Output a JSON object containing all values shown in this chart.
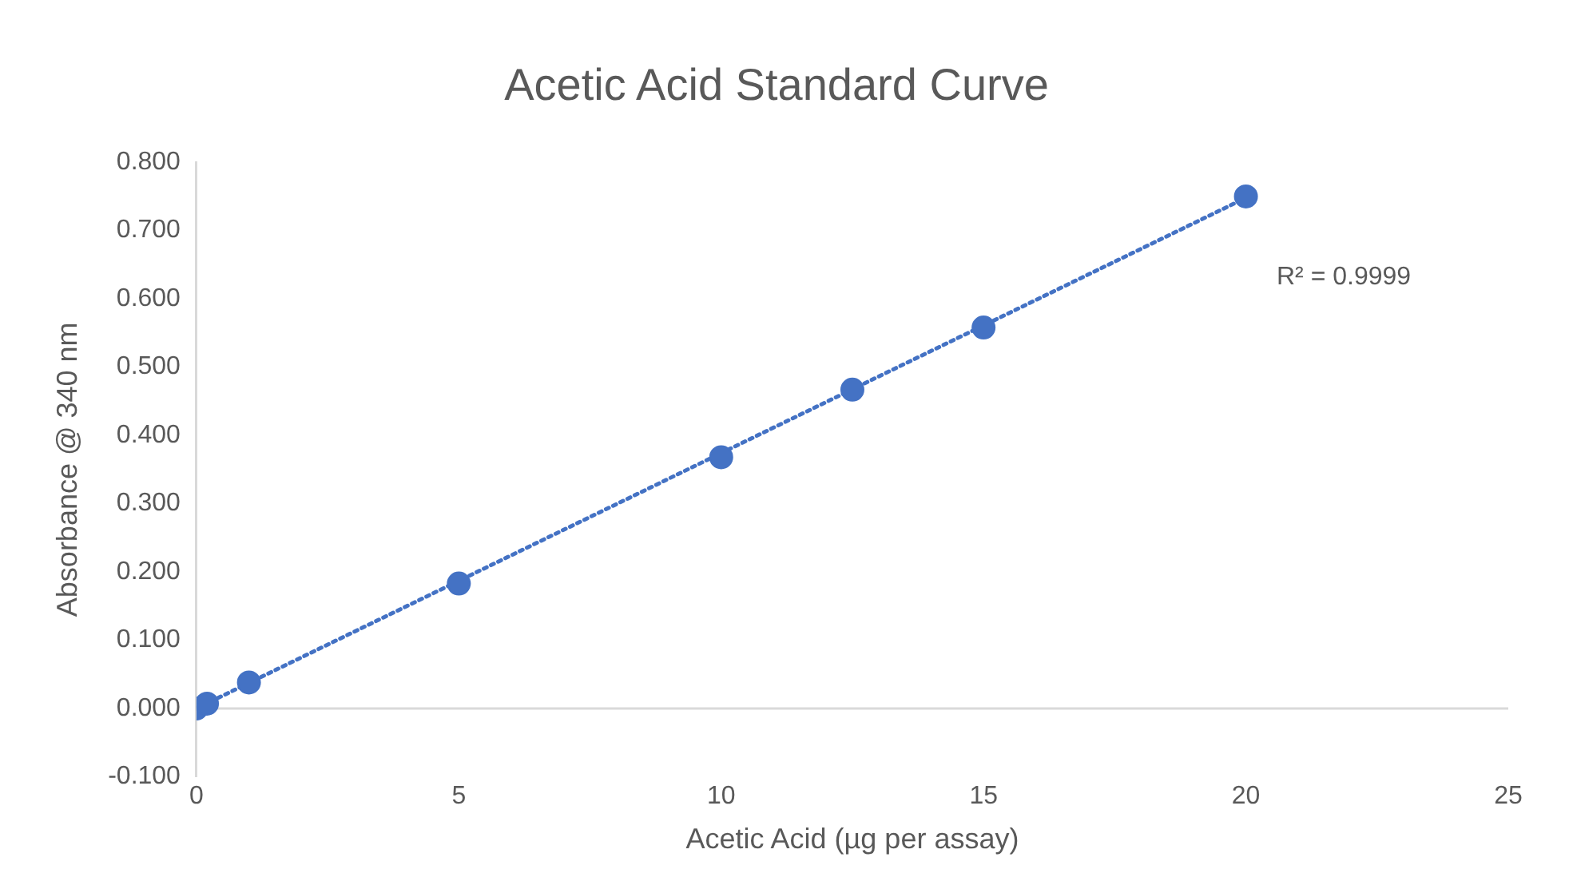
{
  "chart_data": {
    "type": "scatter",
    "title": "Acetic Acid Standard Curve",
    "xlabel": "Acetic Acid (µg per assay)",
    "ylabel": "Absorbance @ 340 nm",
    "series": [
      {
        "type": "scatter",
        "color": "#4472c4",
        "x": [
          0,
          0.2,
          1,
          5,
          10,
          12.5,
          15,
          20
        ],
        "values": [
          0.0,
          0.007,
          0.038,
          0.183,
          0.368,
          0.467,
          0.558,
          0.75
        ],
        "marker": "circle"
      },
      {
        "type": "line",
        "color": "#4472c4",
        "x": [
          0,
          20
        ],
        "values": [
          0.0,
          0.748
        ],
        "line_style": "dotted",
        "marker": "none"
      }
    ],
    "annotations": [
      "R² = 0.9999"
    ],
    "xlim": [
      0,
      25
    ],
    "xticks": [
      0,
      5,
      10,
      15,
      20,
      25
    ],
    "ylim": [
      -0.1,
      0.8
    ],
    "yticks": [
      {
        "value": -0.1,
        "label": "-0.100"
      },
      {
        "value": 0,
        "label": "0.000"
      },
      {
        "value": 0.1,
        "label": "0.100"
      },
      {
        "value": 0.2,
        "label": "0.200"
      },
      {
        "value": 0.3,
        "label": "0.300"
      },
      {
        "value": 0.4,
        "label": "0.400"
      },
      {
        "value": 0.5,
        "label": "0.500"
      },
      {
        "value": 0.6,
        "label": "0.600"
      },
      {
        "value": 0.7,
        "label": "0.700"
      },
      {
        "value": 0.8,
        "label": "0.800"
      }
    ],
    "ref_lines": [
      {
        "axis": "y",
        "value": 0,
        "color": "#d9d9d9"
      }
    ],
    "grid": false,
    "legend": false
  }
}
